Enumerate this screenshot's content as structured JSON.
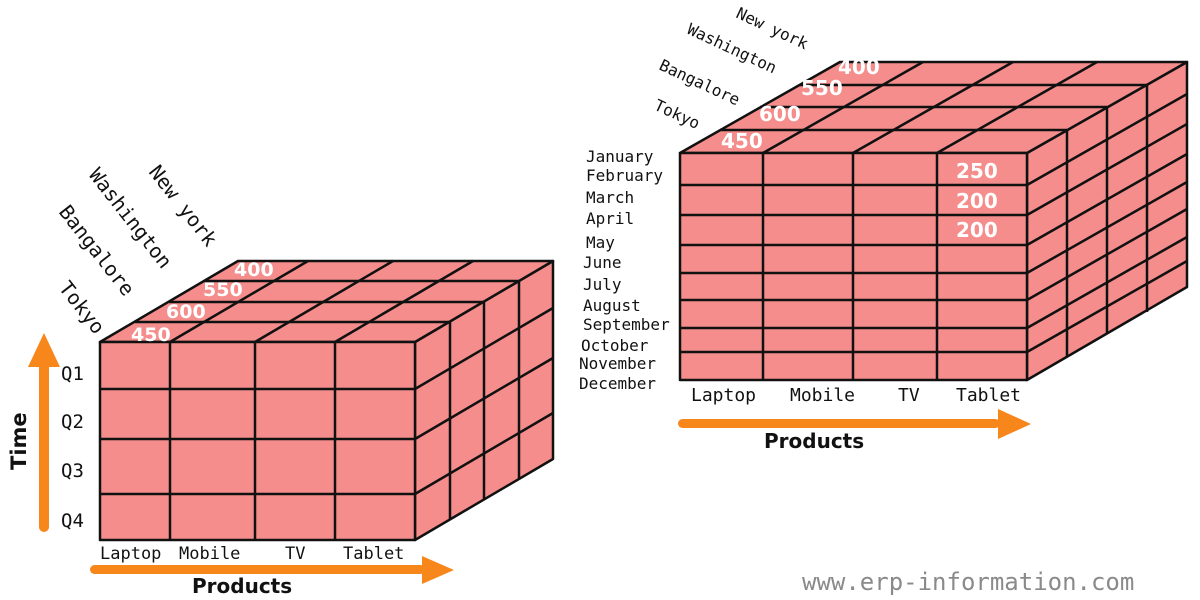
{
  "colors": {
    "cube_face": "#f48d8b",
    "grid_line": "#111111",
    "arrow": "#f7861b",
    "value_text": "#ffffff"
  },
  "cube_quarterly": {
    "products": [
      "Laptop",
      "Mobile",
      "TV",
      "Tablet"
    ],
    "locations": [
      "Tokyo",
      "Bangalore",
      "Washington",
      "New york"
    ],
    "time_periods": [
      "Q1",
      "Q2",
      "Q3",
      "Q4"
    ],
    "top_values": [
      "450",
      "600",
      "550",
      "400"
    ],
    "x_axis_title": "Products",
    "y_axis_title": "Time"
  },
  "cube_monthly": {
    "products": [
      "Laptop",
      "Mobile",
      "TV",
      "Tablet"
    ],
    "locations": [
      "Tokyo",
      "Bangalore",
      "Washington",
      "New york"
    ],
    "time_periods": [
      "January",
      "February",
      "March",
      "April",
      "May",
      "June",
      "July",
      "August",
      "September",
      "October",
      "November",
      "December"
    ],
    "top_values": [
      "450",
      "600",
      "550",
      "400"
    ],
    "tablet_values": [
      "250",
      "200",
      "200"
    ],
    "x_axis_title": "Products"
  },
  "watermark": "www.erp-information.com"
}
